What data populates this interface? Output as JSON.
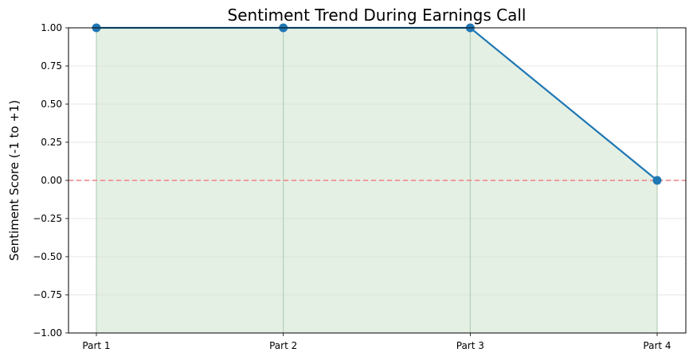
{
  "chart_data": {
    "type": "line",
    "title": "Sentiment Trend During Earnings Call",
    "xlabel": "",
    "ylabel": "Sentiment Score (-1 to +1)",
    "categories": [
      "Part 1",
      "Part 2",
      "Part 3",
      "Part 4"
    ],
    "series": [
      {
        "values": [
          1.0,
          1.0,
          1.0,
          0.0
        ],
        "color": "#1f77b4"
      }
    ],
    "ylim": [
      -1.0,
      1.0
    ],
    "yticks": [
      "1.00",
      "0.75",
      "0.50",
      "0.25",
      "0.00",
      "−0.25",
      "−0.50",
      "−0.75",
      "−1.00"
    ],
    "ytick_values": [
      1.0,
      0.75,
      0.5,
      0.25,
      0.0,
      -0.25,
      -0.5,
      -0.75,
      -1.0
    ],
    "grid": true,
    "reference_line": {
      "y": 0.0,
      "style": "dashed",
      "color": "#f08080"
    },
    "positive_fill": {
      "color": "#2e8b2e",
      "opacity": 0.13
    }
  }
}
